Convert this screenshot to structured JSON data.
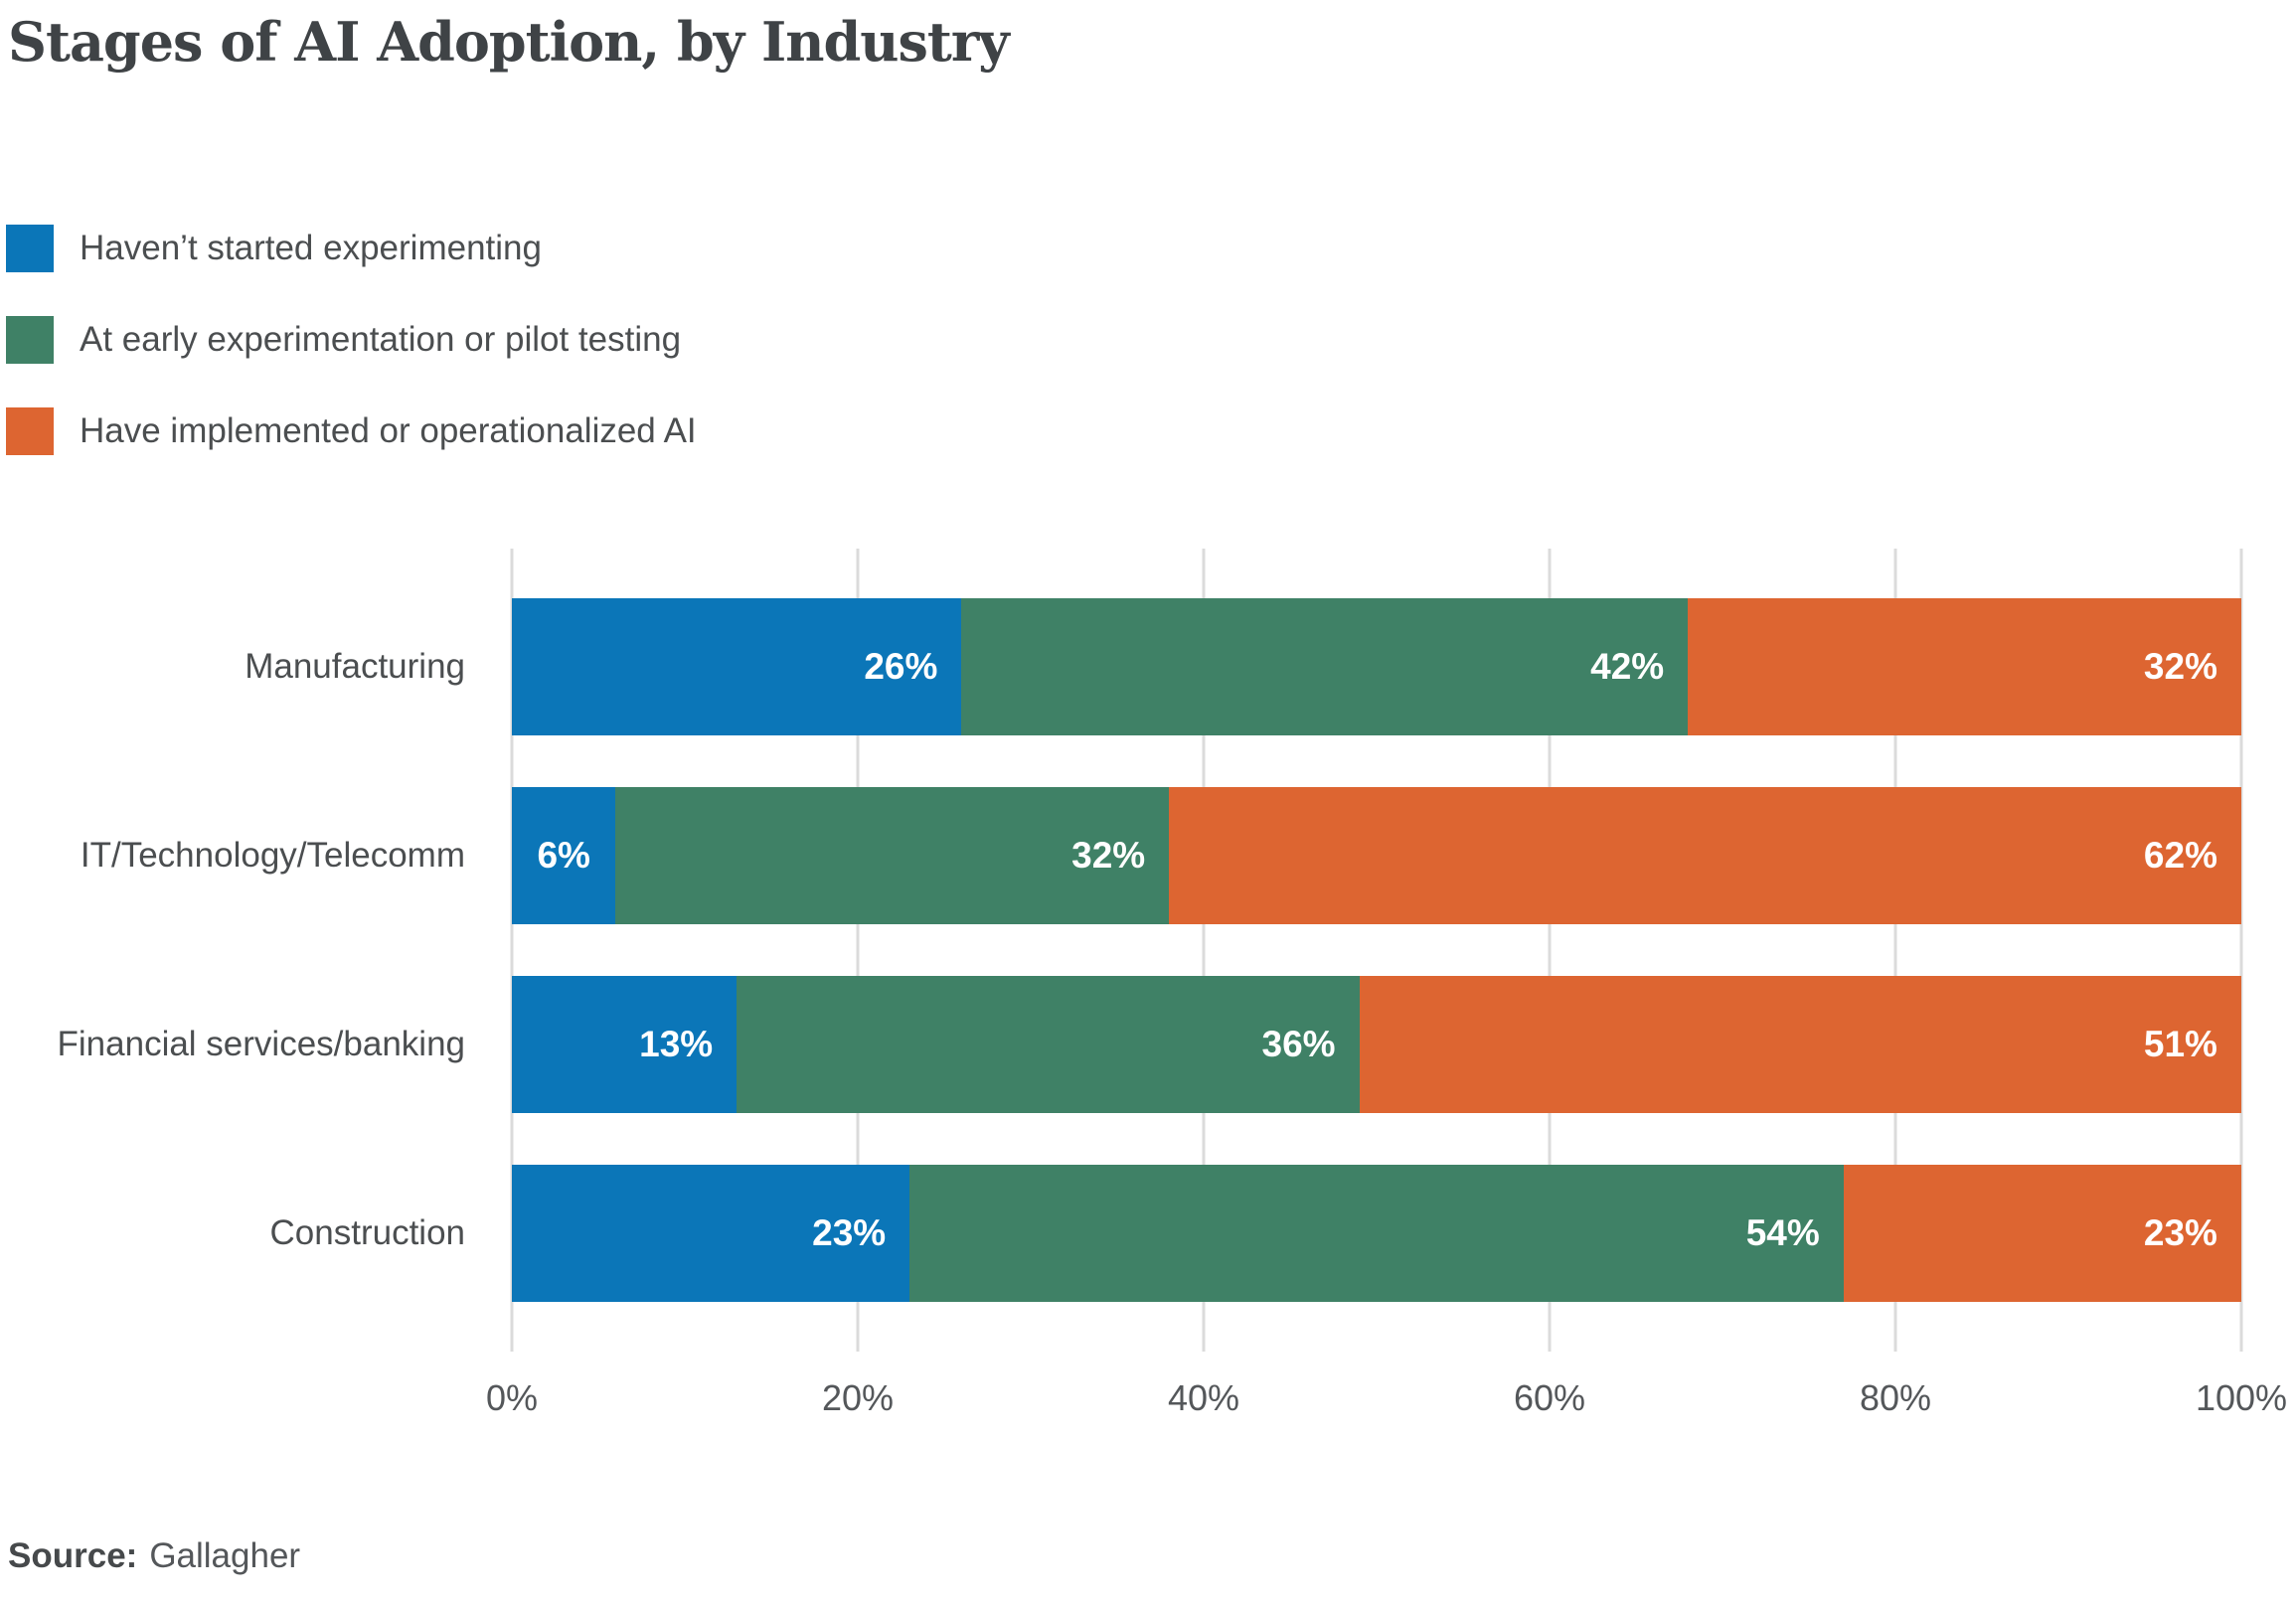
{
  "title": "Stages of AI Adoption, by Industry",
  "source": {
    "label": "Source:",
    "value": "Gallagher"
  },
  "colors": {
    "series_blue": "#0b76b8",
    "series_green": "#3f8166",
    "series_orange": "#dd6531",
    "gridline": "#dbdbdb",
    "title_text": "#3f4346",
    "label_text": "#4b4e50",
    "tick_text": "#54575a",
    "bar_value_text": "#ffffff"
  },
  "chart_data": {
    "type": "bar",
    "orientation": "horizontal-stacked",
    "title": "Stages of AI Adoption, by Industry",
    "categories": [
      "Manufacturing",
      "IT/Technology/Telecomm",
      "Financial services/banking",
      "Construction"
    ],
    "series": [
      {
        "name": "Haven’t started experimenting",
        "color": "#0b76b8",
        "values": [
          26,
          6,
          13,
          23
        ]
      },
      {
        "name": "At early experimentation or pilot testing",
        "color": "#3f8166",
        "values": [
          42,
          32,
          36,
          54
        ]
      },
      {
        "name": "Have implemented or operationalized AI",
        "color": "#dd6531",
        "values": [
          32,
          62,
          51,
          23
        ]
      }
    ],
    "value_suffix": "%",
    "x_ticks": [
      "0%",
      "20%",
      "40%",
      "60%",
      "80%",
      "100%"
    ],
    "xlim": [
      0,
      100
    ],
    "grid": true,
    "legend_position": "top-left",
    "xlabel": "",
    "ylabel": ""
  }
}
